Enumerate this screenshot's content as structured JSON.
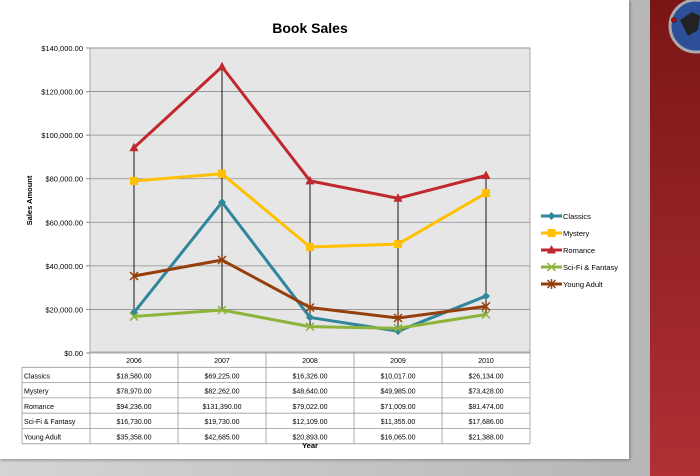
{
  "chart_data": {
    "type": "line",
    "title": "Book Sales",
    "xlabel": "Year",
    "ylabel": "Sales Amount",
    "ylim": [
      0,
      140000
    ],
    "yticks": [
      "$0.00",
      "$20,000.00",
      "$40,000.00",
      "$60,000.00",
      "$80,000.00",
      "$100,000.00",
      "$120,000.00",
      "$140,000.00"
    ],
    "grid": true,
    "legend": "right",
    "high_low_lines": true,
    "categories": [
      "2006",
      "2007",
      "2008",
      "2009",
      "2010"
    ],
    "series": [
      {
        "name": "Classics",
        "color": "#31859c",
        "marker": "diamond",
        "values": [
          18580,
          69225,
          16326,
          10017,
          26134
        ],
        "labels": [
          "$18,580.00",
          "$69,225.00",
          "$16,326.00",
          "$10,017.00",
          "$26,134.00"
        ]
      },
      {
        "name": "Mystery",
        "color": "#ffc000",
        "marker": "square",
        "values": [
          78970,
          82262,
          48640,
          49985,
          73428
        ],
        "labels": [
          "$78,970.00",
          "$82,262.00",
          "$48,640.00",
          "$49,985.00",
          "$73,428.00"
        ]
      },
      {
        "name": "Romance",
        "color": "#c0282d",
        "marker": "triangle",
        "values": [
          94236,
          131390,
          79022,
          71009,
          81474
        ],
        "labels": [
          "$94,236.00",
          "$131,390.00",
          "$79,022.00",
          "$71,009.00",
          "$81,474.00"
        ]
      },
      {
        "name": "Sci-Fi & Fantasy",
        "color": "#8db33a",
        "marker": "x",
        "values": [
          16730,
          19730,
          12109,
          11355,
          17686
        ],
        "labels": [
          "$16,730.00",
          "$19,730.00",
          "$12,109.00",
          "$11,355.00",
          "$17,686.00"
        ]
      },
      {
        "name": "Young Adult",
        "color": "#953f0c",
        "marker": "star",
        "values": [
          35358,
          42685,
          20893,
          16065,
          21388
        ],
        "labels": [
          "$35,358.00",
          "$42,685.00",
          "$20,893.00",
          "$16,065.00",
          "$21,388.00"
        ]
      }
    ]
  }
}
